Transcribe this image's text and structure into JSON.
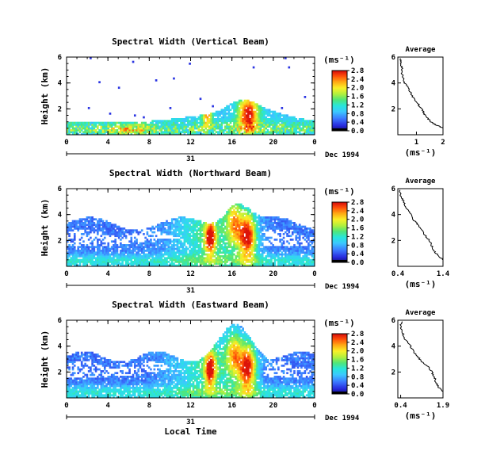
{
  "chart_data": [
    {
      "type": "heatmap",
      "title": "Spectral Width (Vertical Beam)",
      "beam": "vertical",
      "ylabel": "Height (km)",
      "ylim": [
        0,
        6
      ],
      "yticks": [
        "2",
        "4",
        "6"
      ],
      "xlim": [
        0,
        24
      ],
      "xticks": [
        "0",
        "4",
        "8",
        "12",
        "16",
        "20",
        "0"
      ],
      "day_label": "31",
      "date_label": "Dec 1994",
      "colorbar": {
        "unit": "(ms⁻¹)",
        "labels": [
          "0.0",
          "0.4",
          "0.8",
          "1.2",
          "1.6",
          "2.0",
          "2.4",
          "2.8"
        ],
        "range": [
          0,
          2.8
        ]
      },
      "average": {
        "title": "Average",
        "xlabel": "(ms⁻¹)",
        "xticks": [
          "1",
          "2"
        ],
        "xlim": [
          0.3,
          2.0
        ],
        "ylim": [
          0,
          6
        ],
        "yticks": [
          "2",
          "4",
          "6"
        ],
        "profile": [
          [
            2.0,
            0.5
          ],
          [
            1.8,
            0.7
          ],
          [
            1.6,
            0.9
          ],
          [
            1.45,
            1.2
          ],
          [
            1.3,
            1.6
          ],
          [
            1.2,
            2.0
          ],
          [
            1.05,
            2.4
          ],
          [
            0.9,
            2.8
          ],
          [
            0.8,
            3.2
          ],
          [
            0.7,
            3.6
          ],
          [
            0.55,
            4.0
          ],
          [
            0.5,
            4.4
          ],
          [
            0.45,
            4.8
          ],
          [
            0.45,
            5.2
          ],
          [
            0.4,
            5.6
          ],
          [
            0.4,
            5.9
          ]
        ]
      }
    },
    {
      "type": "heatmap",
      "title": "Spectral Width (Northward Beam)",
      "beam": "northward",
      "ylabel": "Height (km)",
      "ylim": [
        0,
        6
      ],
      "yticks": [
        "2",
        "4",
        "6"
      ],
      "xlim": [
        0,
        24
      ],
      "xticks": [
        "0",
        "4",
        "8",
        "12",
        "16",
        "20",
        "0"
      ],
      "day_label": "31",
      "date_label": "Dec 1994",
      "colorbar": {
        "unit": "(ms⁻¹)",
        "labels": [
          "0.0",
          "0.4",
          "0.8",
          "1.2",
          "1.6",
          "2.0",
          "2.4",
          "2.8"
        ],
        "range": [
          0,
          2.8
        ]
      },
      "average": {
        "title": "Average",
        "xlabel": "(ms⁻¹)",
        "xticks": [
          "0.4",
          "1.4"
        ],
        "xlim": [
          0.4,
          1.4
        ],
        "ylim": [
          0,
          6
        ],
        "yticks": [
          "2",
          "4",
          "6"
        ],
        "profile": [
          [
            1.4,
            0.5
          ],
          [
            1.3,
            0.8
          ],
          [
            1.2,
            1.2
          ],
          [
            1.15,
            1.6
          ],
          [
            1.1,
            2.0
          ],
          [
            1.0,
            2.4
          ],
          [
            0.95,
            2.8
          ],
          [
            0.85,
            3.2
          ],
          [
            0.75,
            3.6
          ],
          [
            0.7,
            4.0
          ],
          [
            0.6,
            4.4
          ],
          [
            0.55,
            4.8
          ],
          [
            0.5,
            5.2
          ],
          [
            0.45,
            5.6
          ],
          [
            0.45,
            5.9
          ]
        ]
      }
    },
    {
      "type": "heatmap",
      "title": "Spectral Width (Eastward Beam)",
      "beam": "eastward",
      "ylabel": "Height (km)",
      "ylim": [
        0,
        6
      ],
      "yticks": [
        "2",
        "4",
        "6"
      ],
      "xlim": [
        0,
        24
      ],
      "xlabel": "Local Time",
      "xticks": [
        "0",
        "4",
        "8",
        "12",
        "16",
        "20",
        "0"
      ],
      "day_label": "31",
      "date_label": "Dec 1994",
      "colorbar": {
        "unit": "(ms⁻¹)",
        "labels": [
          "0.0",
          "0.4",
          "0.8",
          "1.2",
          "1.6",
          "2.0",
          "2.4",
          "2.8"
        ],
        "range": [
          0,
          2.8
        ]
      },
      "average": {
        "title": "Average",
        "xlabel": "(ms⁻¹)",
        "xticks": [
          "0.4",
          "1.9"
        ],
        "xlim": [
          0.3,
          1.9
        ],
        "ylim": [
          0,
          6
        ],
        "yticks": [
          "2",
          "4",
          "6"
        ],
        "profile": [
          [
            1.9,
            0.5
          ],
          [
            1.75,
            0.8
          ],
          [
            1.65,
            1.2
          ],
          [
            1.6,
            1.6
          ],
          [
            1.5,
            2.0
          ],
          [
            1.4,
            2.4
          ],
          [
            1.15,
            2.8
          ],
          [
            1.0,
            3.2
          ],
          [
            0.85,
            3.6
          ],
          [
            0.75,
            4.0
          ],
          [
            0.6,
            4.4
          ],
          [
            0.5,
            4.8
          ],
          [
            0.45,
            5.2
          ],
          [
            0.4,
            5.6
          ],
          [
            0.45,
            5.9
          ]
        ]
      }
    }
  ]
}
